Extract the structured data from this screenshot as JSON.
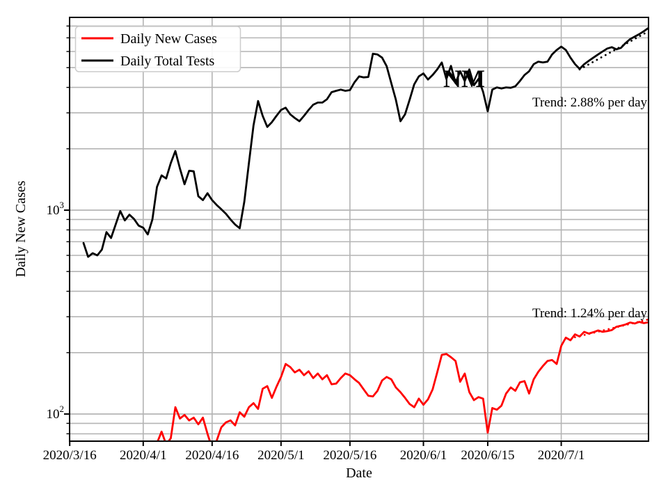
{
  "chart_data": {
    "type": "line",
    "title": "",
    "xlabel": "Date",
    "ylabel": "Daily New Cases",
    "y_scale": "log",
    "ylim": [
      73,
      8800
    ],
    "grid": true,
    "grid_color": "#b4b4b4",
    "background_color": "#ffffff",
    "start_date": "2020/3/19",
    "dates": [
      "2020/3/19",
      "2020/3/20",
      "2020/3/21",
      "2020/3/22",
      "2020/3/23",
      "2020/3/24",
      "2020/3/25",
      "2020/3/26",
      "2020/3/27",
      "2020/3/28",
      "2020/3/29",
      "2020/3/30",
      "2020/3/31",
      "2020/4/1",
      "2020/4/2",
      "2020/4/3",
      "2020/4/4",
      "2020/4/5",
      "2020/4/6",
      "2020/4/7",
      "2020/4/8",
      "2020/4/9",
      "2020/4/10",
      "2020/4/11",
      "2020/4/12",
      "2020/4/13",
      "2020/4/14",
      "2020/4/15",
      "2020/4/16",
      "2020/4/17",
      "2020/4/18",
      "2020/4/19",
      "2020/4/20",
      "2020/4/21",
      "2020/4/22",
      "2020/4/23",
      "2020/4/24",
      "2020/4/25",
      "2020/4/26",
      "2020/4/27",
      "2020/4/28",
      "2020/4/29",
      "2020/4/30",
      "2020/5/1",
      "2020/5/2",
      "2020/5/3",
      "2020/5/4",
      "2020/5/5",
      "2020/5/6",
      "2020/5/7",
      "2020/5/8",
      "2020/5/9",
      "2020/5/10",
      "2020/5/11",
      "2020/5/12",
      "2020/5/13",
      "2020/5/14",
      "2020/5/15",
      "2020/5/16",
      "2020/5/17",
      "2020/5/18",
      "2020/5/19",
      "2020/5/20",
      "2020/5/21",
      "2020/5/22",
      "2020/5/23",
      "2020/5/24",
      "2020/5/25",
      "2020/5/26",
      "2020/5/27",
      "2020/5/28",
      "2020/5/29",
      "2020/5/30",
      "2020/5/31",
      "2020/6/1",
      "2020/6/2",
      "2020/6/3",
      "2020/6/4",
      "2020/6/5",
      "2020/6/6",
      "2020/6/7",
      "2020/6/8",
      "2020/6/9",
      "2020/6/10",
      "2020/6/11",
      "2020/6/12",
      "2020/6/13",
      "2020/6/14",
      "2020/6/15",
      "2020/6/16",
      "2020/6/17",
      "2020/6/18",
      "2020/6/19",
      "2020/6/20",
      "2020/6/21",
      "2020/6/22",
      "2020/6/23",
      "2020/6/24",
      "2020/6/25",
      "2020/6/26",
      "2020/6/27",
      "2020/6/28",
      "2020/6/29",
      "2020/6/30",
      "2020/7/1",
      "2020/7/2",
      "2020/7/3",
      "2020/7/4",
      "2020/7/5",
      "2020/7/6",
      "2020/7/7",
      "2020/7/8",
      "2020/7/9",
      "2020/7/10",
      "2020/7/11",
      "2020/7/12",
      "2020/7/13",
      "2020/7/14",
      "2020/7/15",
      "2020/7/16",
      "2020/7/17",
      "2020/7/18",
      "2020/7/19",
      "2020/7/20"
    ],
    "series": [
      {
        "name": "Daily New Cases",
        "color": "#ff0000",
        "values": [
          null,
          null,
          null,
          null,
          null,
          null,
          null,
          null,
          null,
          null,
          null,
          null,
          null,
          null,
          null,
          null,
          72,
          82,
          71,
          76,
          108,
          95,
          99,
          93,
          96,
          89,
          96,
          80,
          68,
          74,
          86,
          91,
          93,
          88,
          102,
          97,
          108,
          113,
          106,
          133,
          137,
          120,
          136,
          152,
          176,
          170,
          160,
          165,
          155,
          162,
          150,
          158,
          148,
          155,
          140,
          141,
          150,
          158,
          155,
          148,
          142,
          132,
          123,
          122,
          130,
          146,
          152,
          148,
          135,
          128,
          120,
          112,
          108,
          119,
          111,
          118,
          132,
          160,
          195,
          197,
          190,
          182,
          144,
          158,
          128,
          117,
          121,
          119,
          81,
          107,
          105,
          110,
          126,
          135,
          130,
          143,
          145,
          126,
          148,
          161,
          172,
          182,
          184,
          176,
          216,
          237,
          230,
          246,
          240,
          253,
          248,
          252,
          257,
          253,
          255,
          258,
          268,
          271,
          275,
          281,
          278,
          283,
          279,
          282
        ]
      },
      {
        "name": "Daily Total Tests",
        "color": "#000000",
        "values": [
          690,
          590,
          615,
          600,
          640,
          780,
          730,
          850,
          990,
          890,
          950,
          905,
          840,
          820,
          760,
          900,
          1300,
          1480,
          1430,
          1700,
          1950,
          1600,
          1340,
          1560,
          1550,
          1170,
          1120,
          1210,
          1120,
          1060,
          1010,
          960,
          900,
          850,
          815,
          1100,
          1700,
          2600,
          3430,
          2900,
          2560,
          2700,
          2900,
          3100,
          3180,
          2950,
          2830,
          2730,
          2900,
          3100,
          3290,
          3370,
          3370,
          3500,
          3790,
          3850,
          3900,
          3850,
          3880,
          4240,
          4530,
          4480,
          4500,
          5850,
          5800,
          5600,
          5080,
          4200,
          3480,
          2730,
          2950,
          3480,
          4140,
          4530,
          4680,
          4370,
          4600,
          4900,
          5300,
          4400,
          5100,
          4200,
          4800,
          4300,
          4900,
          4100,
          4400,
          3800,
          3050,
          3900,
          4000,
          3950,
          4000,
          3980,
          4050,
          4300,
          4600,
          4800,
          5200,
          5350,
          5300,
          5350,
          5800,
          6100,
          6340,
          6100,
          5600,
          5200,
          4930,
          5200,
          5400,
          5600,
          5800,
          6000,
          6200,
          6300,
          6150,
          6250,
          6600,
          6900,
          7100,
          7300,
          7550,
          7830
        ]
      }
    ],
    "trends": [
      {
        "id": "tests-trend",
        "for": "Daily Total Tests",
        "label": "Trend: 2.88% per day",
        "percent_per_day": 2.88,
        "start_index": 108,
        "end_index": 123,
        "start_value": 4900,
        "end_value": 7540,
        "color": "#000000",
        "style": "dotted"
      },
      {
        "id": "cases-trend",
        "for": "Daily New Cases",
        "label": "Trend: 1.24% per day",
        "percent_per_day": 1.24,
        "start_index": 107,
        "end_index": 123,
        "start_value": 238,
        "end_value": 291,
        "color": "#ff0000",
        "style": "dotted"
      }
    ],
    "annotations": [
      {
        "id": "state-label",
        "text": "NM"
      },
      {
        "id": "tests-trend-label",
        "text": "Trend: 2.88% per day"
      },
      {
        "id": "cases-trend-label",
        "text": "Trend: 1.24% per day"
      }
    ],
    "legend": {
      "position": "upper-left",
      "entries": [
        {
          "label": "Daily New Cases",
          "color": "#ff0000"
        },
        {
          "label": "Daily Total Tests",
          "color": "#000000"
        }
      ]
    },
    "axes": {
      "x_ticks": [
        {
          "label": "2020/3/16",
          "day_index": -3
        },
        {
          "label": "2020/4/1",
          "day_index": 13
        },
        {
          "label": "2020/4/16",
          "day_index": 28
        },
        {
          "label": "2020/5/1",
          "day_index": 43
        },
        {
          "label": "2020/5/16",
          "day_index": 58
        },
        {
          "label": "2020/6/1",
          "day_index": 74
        },
        {
          "label": "2020/6/15",
          "day_index": 88
        },
        {
          "label": "2020/7/1",
          "day_index": 104
        }
      ],
      "y_ticks_major": [
        {
          "base": "10",
          "exp": "2",
          "value": 100
        },
        {
          "base": "10",
          "exp": "3",
          "value": 1000
        }
      ],
      "y_ticks_minor": [
        80,
        90,
        200,
        300,
        400,
        500,
        600,
        700,
        800,
        900,
        2000,
        3000,
        4000,
        5000,
        6000,
        7000,
        8000
      ]
    }
  }
}
